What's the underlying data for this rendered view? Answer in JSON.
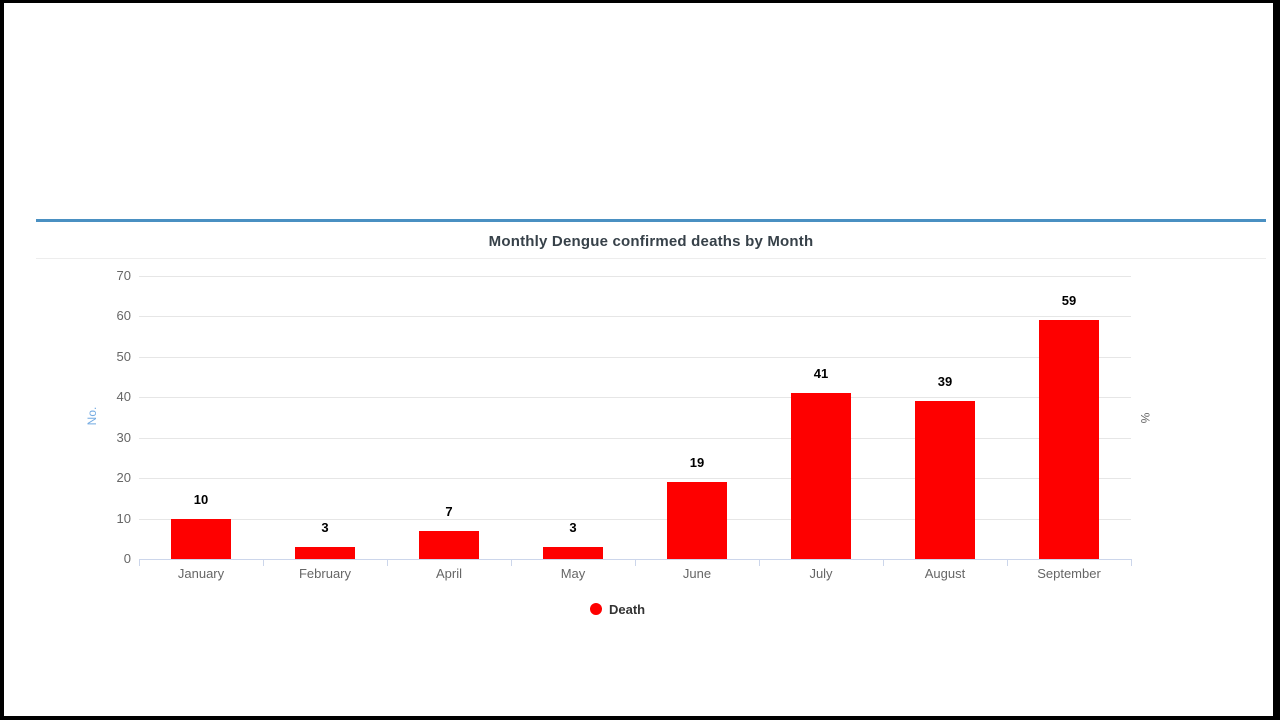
{
  "chart_data": {
    "type": "bar",
    "title": "Monthly Dengue confirmed deaths by Month",
    "categories": [
      "January",
      "February",
      "April",
      "May",
      "June",
      "July",
      "August",
      "September"
    ],
    "series": [
      {
        "name": "Death",
        "color": "#fe0000",
        "values": [
          10,
          3,
          7,
          3,
          19,
          41,
          39,
          59
        ]
      }
    ],
    "ylabel_left": "No.",
    "ylabel_right": "%",
    "ylim": [
      0,
      70
    ],
    "ytick_step": 10,
    "grid": true,
    "legend_position": "bottom-center",
    "legend": {
      "label": "Death"
    }
  },
  "colors": {
    "top_accent_line": "#4a90c2",
    "bar": "#fe0000",
    "gridline": "#e6e6e6",
    "axis_line": "#ccd6eb",
    "tick_label": "#666666",
    "x_axis_label": "#666666",
    "left_axis_title": "#74abe2",
    "right_axis_title": "#666666",
    "chart_title": "#374149",
    "value_label": "#000000",
    "header_divider": "#ededed"
  }
}
